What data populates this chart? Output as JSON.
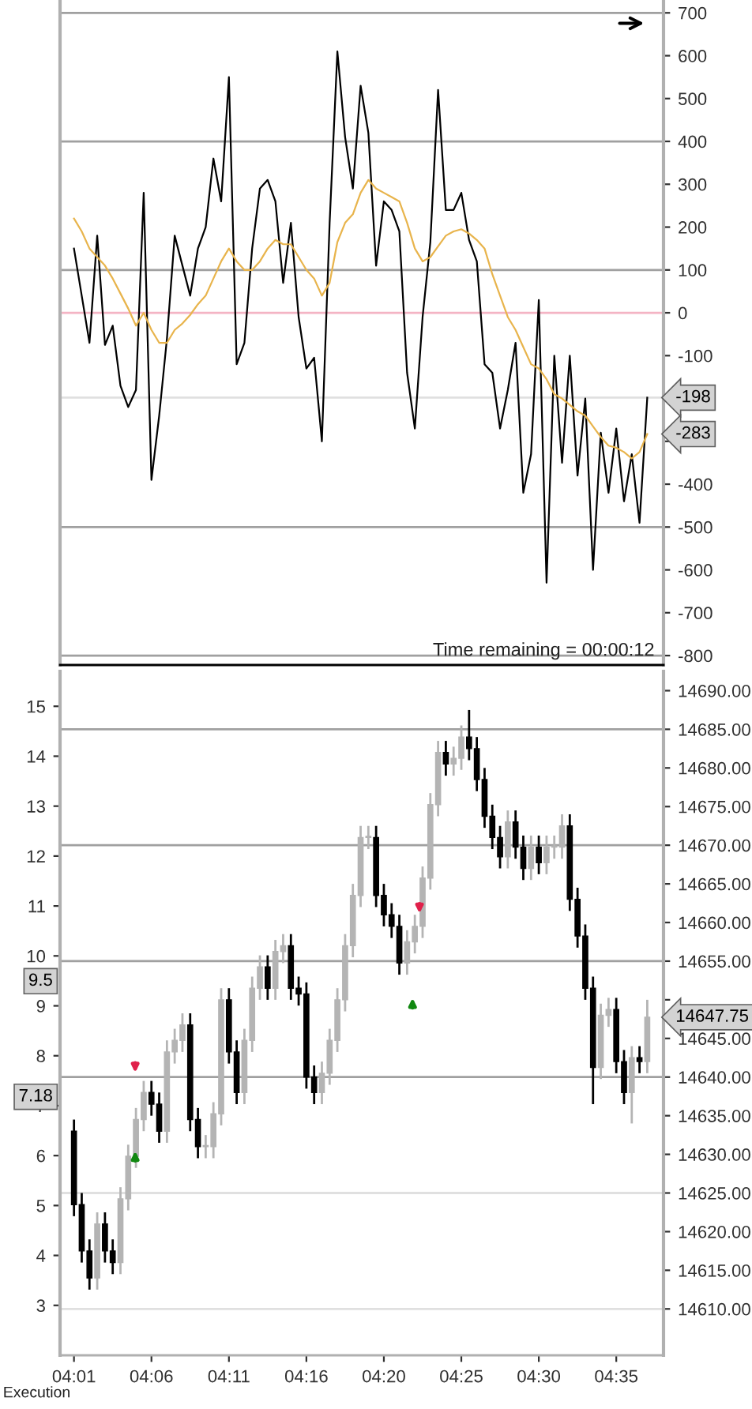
{
  "chart_data": [
    {
      "type": "line",
      "categories": [
        null,
        null,
        null,
        null,
        null,
        null,
        null,
        null,
        null,
        null,
        null,
        null,
        null,
        null,
        null,
        null,
        null,
        null,
        null,
        null,
        null,
        null,
        null,
        null,
        null,
        null,
        null,
        null,
        null,
        null,
        null,
        null,
        null,
        null,
        null,
        null,
        null,
        null,
        null,
        null,
        null,
        null,
        null,
        null,
        null,
        null,
        null,
        null,
        null,
        null,
        null,
        null,
        null,
        null,
        null,
        null,
        null,
        null,
        null,
        null,
        null,
        null,
        null,
        null,
        null,
        null,
        null,
        null,
        null,
        null,
        null,
        null,
        null,
        null,
        null
      ],
      "series": [
        {
          "color": "#000000",
          "values": [
            150,
            40,
            -70,
            180,
            -75,
            -30,
            -170,
            -220,
            -180,
            280,
            -390,
            -240,
            -60,
            180,
            110,
            40,
            150,
            200,
            360,
            260,
            550,
            -120,
            -70,
            150,
            290,
            310,
            260,
            70,
            210,
            -10,
            -130,
            -105,
            -300,
            210,
            610,
            410,
            290,
            530,
            420,
            110,
            260,
            240,
            190,
            -140,
            -270,
            -10,
            165,
            520,
            240,
            240,
            280,
            170,
            120,
            -120,
            -140,
            -270,
            -180,
            -70,
            -420,
            -330,
            30,
            -630,
            -100,
            -350,
            -100,
            -380,
            -200,
            -600,
            -280,
            -420,
            -270,
            -440,
            -330,
            -490,
            -198
          ]
        },
        {
          "color": "#e8b44c",
          "values": [
            220,
            190,
            150,
            130,
            110,
            80,
            45,
            10,
            -30,
            0,
            -40,
            -70,
            -70,
            -40,
            -25,
            -5,
            20,
            40,
            80,
            120,
            150,
            120,
            100,
            100,
            120,
            150,
            170,
            160,
            160,
            130,
            100,
            80,
            40,
            70,
            165,
            210,
            230,
            280,
            310,
            290,
            280,
            270,
            260,
            210,
            150,
            120,
            130,
            155,
            180,
            190,
            195,
            185,
            170,
            150,
            90,
            40,
            -10,
            -40,
            -80,
            -120,
            -130,
            -155,
            -190,
            -200,
            -215,
            -230,
            -240,
            -265,
            -290,
            -310,
            -315,
            -325,
            -340,
            -325,
            -283
          ]
        }
      ],
      "ylim": [
        -822,
        730
      ],
      "yticks": [
        -800,
        -700,
        -600,
        -500,
        -400,
        {
          "value": -300,
          "label": null
        },
        {
          "value": -200,
          "label": null
        },
        -100,
        0,
        100,
        200,
        300,
        400,
        500,
        600,
        700
      ],
      "tick_labels": "y",
      "ref_lines": [
        {
          "axis": "y",
          "value": 700,
          "color": "#a0a0a0"
        },
        {
          "axis": "y",
          "value": 400,
          "color": "#a0a0a0"
        },
        {
          "axis": "y",
          "value": 100,
          "color": "#a0a0a0"
        },
        {
          "axis": "y",
          "value": -500,
          "color": "#a0a0a0"
        },
        {
          "axis": "y",
          "value": -800,
          "color": "#a0a0a0"
        },
        {
          "axis": "y",
          "value": 0,
          "color": "#f4b4c4"
        },
        {
          "axis": "y",
          "value": -198,
          "label": "-198",
          "color": "#e0e0e0"
        }
      ],
      "annotations": [
        "Time remaining = 00:00:12",
        "-283"
      ]
    },
    {
      "type": "candlestick",
      "categories": [
        "04:01",
        null,
        null,
        null,
        null,
        null,
        null,
        null,
        null,
        null,
        "04:06",
        null,
        null,
        null,
        null,
        null,
        null,
        null,
        null,
        null,
        "04:11",
        null,
        null,
        null,
        null,
        null,
        null,
        null,
        null,
        null,
        "04:16",
        null,
        null,
        null,
        null,
        null,
        null,
        null,
        null,
        null,
        "04:20",
        null,
        null,
        null,
        null,
        null,
        null,
        null,
        null,
        null,
        "04:25",
        null,
        null,
        null,
        null,
        null,
        null,
        null,
        null,
        null,
        "04:30",
        null,
        null,
        null,
        null,
        null,
        null,
        null,
        null,
        null,
        "04:35",
        null,
        null,
        null,
        null
      ],
      "ohlc": [
        [
          14633,
          14634.5,
          14622,
          14623.5
        ],
        [
          14623.5,
          14625,
          14616,
          14617.5
        ],
        [
          14617.5,
          14619,
          14612.5,
          14614
        ],
        [
          14614,
          14622.5,
          14612.5,
          14621
        ],
        [
          14621,
          14622.5,
          14616,
          14617.5
        ],
        [
          14617.5,
          14619,
          14614.5,
          14616
        ],
        [
          14616,
          14625.75,
          14614.5,
          14624.25
        ],
        [
          14624.25,
          14631.25,
          14622.75,
          14629.75
        ],
        [
          14629.75,
          14636,
          14628.25,
          14634.5
        ],
        [
          14634.5,
          14639.5,
          14633,
          14638
        ],
        [
          14638,
          14639.5,
          14635,
          14636.5
        ],
        [
          14636.5,
          14638,
          14631.5,
          14633
        ],
        [
          14633,
          14644.75,
          14631.5,
          14643.25
        ],
        [
          14643.25,
          14646.25,
          14641.75,
          14644.75
        ],
        [
          14644.75,
          14648.25,
          14643.25,
          14646.75
        ],
        [
          14646.75,
          14648.25,
          14633,
          14634.5
        ],
        [
          14634.5,
          14636,
          14629.5,
          14631
        ],
        [
          14631,
          14632.5,
          14629.5,
          14631
        ],
        [
          14631,
          14636.75,
          14629.5,
          14635.25
        ],
        [
          14635.25,
          14651.5,
          14633.75,
          14650
        ],
        [
          14650,
          14651.5,
          14641.75,
          14643.25
        ],
        [
          14643.25,
          14644.75,
          14636.5,
          14638
        ],
        [
          14638,
          14646.25,
          14636.5,
          14644.75
        ],
        [
          14644.75,
          14653,
          14643.25,
          14651.5
        ],
        [
          14651.5,
          14655.75,
          14650,
          14654.25
        ],
        [
          14654.25,
          14655.75,
          14650,
          14651.5
        ],
        [
          14651.5,
          14657.75,
          14650,
          14656.25
        ],
        [
          14656.25,
          14658.5,
          14654.75,
          14657
        ],
        [
          14657,
          14658.5,
          14650,
          14651.5
        ],
        [
          14651.5,
          14653,
          14649.25,
          14650.75
        ],
        [
          14650.75,
          14652.25,
          14638.5,
          14640
        ],
        [
          14640,
          14641.5,
          14636.5,
          14638
        ],
        [
          14638,
          14642,
          14636.5,
          14640.5
        ],
        [
          14640.5,
          14646.25,
          14639,
          14644.75
        ],
        [
          14644.75,
          14651.5,
          14643.25,
          14650
        ],
        [
          14650,
          14658.5,
          14648.5,
          14657
        ],
        [
          14657,
          14665,
          14655.5,
          14663.5
        ],
        [
          14663.5,
          14672.5,
          14662,
          14671
        ],
        [
          14671,
          14672.5,
          14669.5,
          14671
        ],
        [
          14671,
          14672.5,
          14662,
          14663.5
        ],
        [
          14663.5,
          14665,
          14659.5,
          14661
        ],
        [
          14661,
          14662.5,
          14658,
          14659.5
        ],
        [
          14659.5,
          14661,
          14653.25,
          14654.75
        ],
        [
          14654.75,
          14659,
          14653.25,
          14657.5
        ],
        [
          14657.5,
          14661,
          14656,
          14659.5
        ],
        [
          14659.5,
          14667.25,
          14658,
          14665.75
        ],
        [
          14665.75,
          14676.75,
          14664.25,
          14675.25
        ],
        [
          14675.25,
          14683.5,
          14673.75,
          14682
        ],
        [
          14682,
          14683.5,
          14679,
          14680.5
        ],
        [
          14680.5,
          14682.75,
          14679,
          14681.25
        ],
        [
          14681.25,
          14685.5,
          14679.75,
          14684
        ],
        [
          14684,
          14687.5,
          14681,
          14682.5
        ],
        [
          14682.5,
          14684,
          14677,
          14678.5
        ],
        [
          14678.5,
          14680,
          14672.25,
          14673.75
        ],
        [
          14673.75,
          14675.25,
          14669.5,
          14671
        ],
        [
          14671,
          14672.5,
          14667,
          14668.5
        ],
        [
          14668.5,
          14674.5,
          14667,
          14673
        ],
        [
          14673,
          14674.5,
          14668.25,
          14669.75
        ],
        [
          14669.75,
          14671.25,
          14665.5,
          14667
        ],
        [
          14667,
          14671.25,
          14665.5,
          14669.75
        ],
        [
          14669.75,
          14671.25,
          14666.25,
          14667.75
        ],
        [
          14667.75,
          14671.25,
          14666.25,
          14669.75
        ],
        [
          14669.75,
          14671.25,
          14668.25,
          14669.75
        ],
        [
          14669.75,
          14674,
          14668.25,
          14672.5
        ],
        [
          14672.5,
          14674,
          14661.5,
          14663
        ],
        [
          14663,
          14664.5,
          14656.75,
          14658.25
        ],
        [
          14658.25,
          14659.75,
          14650,
          14651.5
        ],
        [
          14651.5,
          14653,
          14636.5,
          14641.25
        ],
        [
          14641.25,
          14649.5,
          14639.75,
          14648
        ],
        [
          14648,
          14650.25,
          14646.5,
          14648.75
        ],
        [
          14648.75,
          14650.25,
          14640.5,
          14642
        ],
        [
          14642,
          14643.5,
          14636.5,
          14638
        ],
        [
          14638,
          14644,
          14634,
          14642.5
        ],
        [
          14642.5,
          14644,
          14640.5,
          14642
        ],
        [
          14642,
          14650,
          14640.5,
          14647.75
        ]
      ],
      "colors": [
        "#000000",
        "#000000",
        "#000000",
        "#b4b4b4",
        "#000000",
        "#000000",
        "#b4b4b4",
        "#b4b4b4",
        "#b4b4b4",
        "#b4b4b4",
        "#000000",
        "#000000",
        "#b4b4b4",
        "#b4b4b4",
        "#b4b4b4",
        "#000000",
        "#000000",
        "#b4b4b4",
        "#b4b4b4",
        "#b4b4b4",
        "#000000",
        "#000000",
        "#b4b4b4",
        "#b4b4b4",
        "#b4b4b4",
        "#000000",
        "#b4b4b4",
        "#b4b4b4",
        "#000000",
        "#000000",
        "#000000",
        "#000000",
        "#b4b4b4",
        "#b4b4b4",
        "#b4b4b4",
        "#b4b4b4",
        "#b4b4b4",
        "#b4b4b4",
        "#b4b4b4",
        "#000000",
        "#000000",
        "#000000",
        "#000000",
        "#b4b4b4",
        "#b4b4b4",
        "#b4b4b4",
        "#b4b4b4",
        "#b4b4b4",
        "#000000",
        "#b4b4b4",
        "#b4b4b4",
        "#000000",
        "#000000",
        "#000000",
        "#000000",
        "#000000",
        "#b4b4b4",
        "#000000",
        "#000000",
        "#b4b4b4",
        "#000000",
        "#b4b4b4",
        "#b4b4b4",
        "#b4b4b4",
        "#000000",
        "#000000",
        "#000000",
        "#000000",
        "#b4b4b4",
        "#b4b4b4",
        "#000000",
        "#000000",
        "#b4b4b4",
        "#000000",
        "#b4b4b4"
      ],
      "ylim": [
        14604,
        14692.5
      ],
      "yticks": [
        {
          "value": 14610,
          "label": "14610.00"
        },
        {
          "value": 14615,
          "label": "14615.00"
        },
        {
          "value": 14620,
          "label": "14620.00"
        },
        {
          "value": 14625,
          "label": "14625.00"
        },
        {
          "value": 14630,
          "label": "14630.00"
        },
        {
          "value": 14635,
          "label": "14635.00"
        },
        {
          "value": 14640,
          "label": "14640.00"
        },
        {
          "value": 14645,
          "label": "14645.00"
        },
        {
          "value": 14650,
          "label": null
        },
        {
          "value": 14655,
          "label": "14655.00"
        },
        {
          "value": 14660,
          "label": "14660.00"
        },
        {
          "value": 14665,
          "label": "14665.00"
        },
        {
          "value": 14670,
          "label": "14670.00"
        },
        {
          "value": 14675,
          "label": "14675.00"
        },
        {
          "value": 14680,
          "label": "14680.00"
        },
        {
          "value": 14685,
          "label": "14685.00"
        },
        {
          "value": 14690,
          "label": "14690.00"
        }
      ],
      "y2lim": [
        2.0,
        15.7
      ],
      "y2ticks": [
        3,
        4,
        5,
        6,
        7,
        8,
        9,
        10,
        11,
        12,
        13,
        14,
        15
      ],
      "ref_lines": [
        {
          "axis": "y",
          "value": 14685,
          "color": "#a0a0a0"
        },
        {
          "axis": "y",
          "value": 14670,
          "color": "#a0a0a0"
        },
        {
          "axis": "y",
          "value": 14655,
          "color": "#a0a0a0"
        },
        {
          "axis": "y",
          "value": 14640,
          "color": "#a0a0a0"
        },
        {
          "axis": "y",
          "value": 14625,
          "color": "#e0e0e0"
        },
        {
          "axis": "y",
          "value": 14610,
          "color": "#e0e0e0"
        }
      ],
      "annotations": [
        "Execution",
        "14647.75",
        "9.5",
        "7.18"
      ]
    }
  ]
}
